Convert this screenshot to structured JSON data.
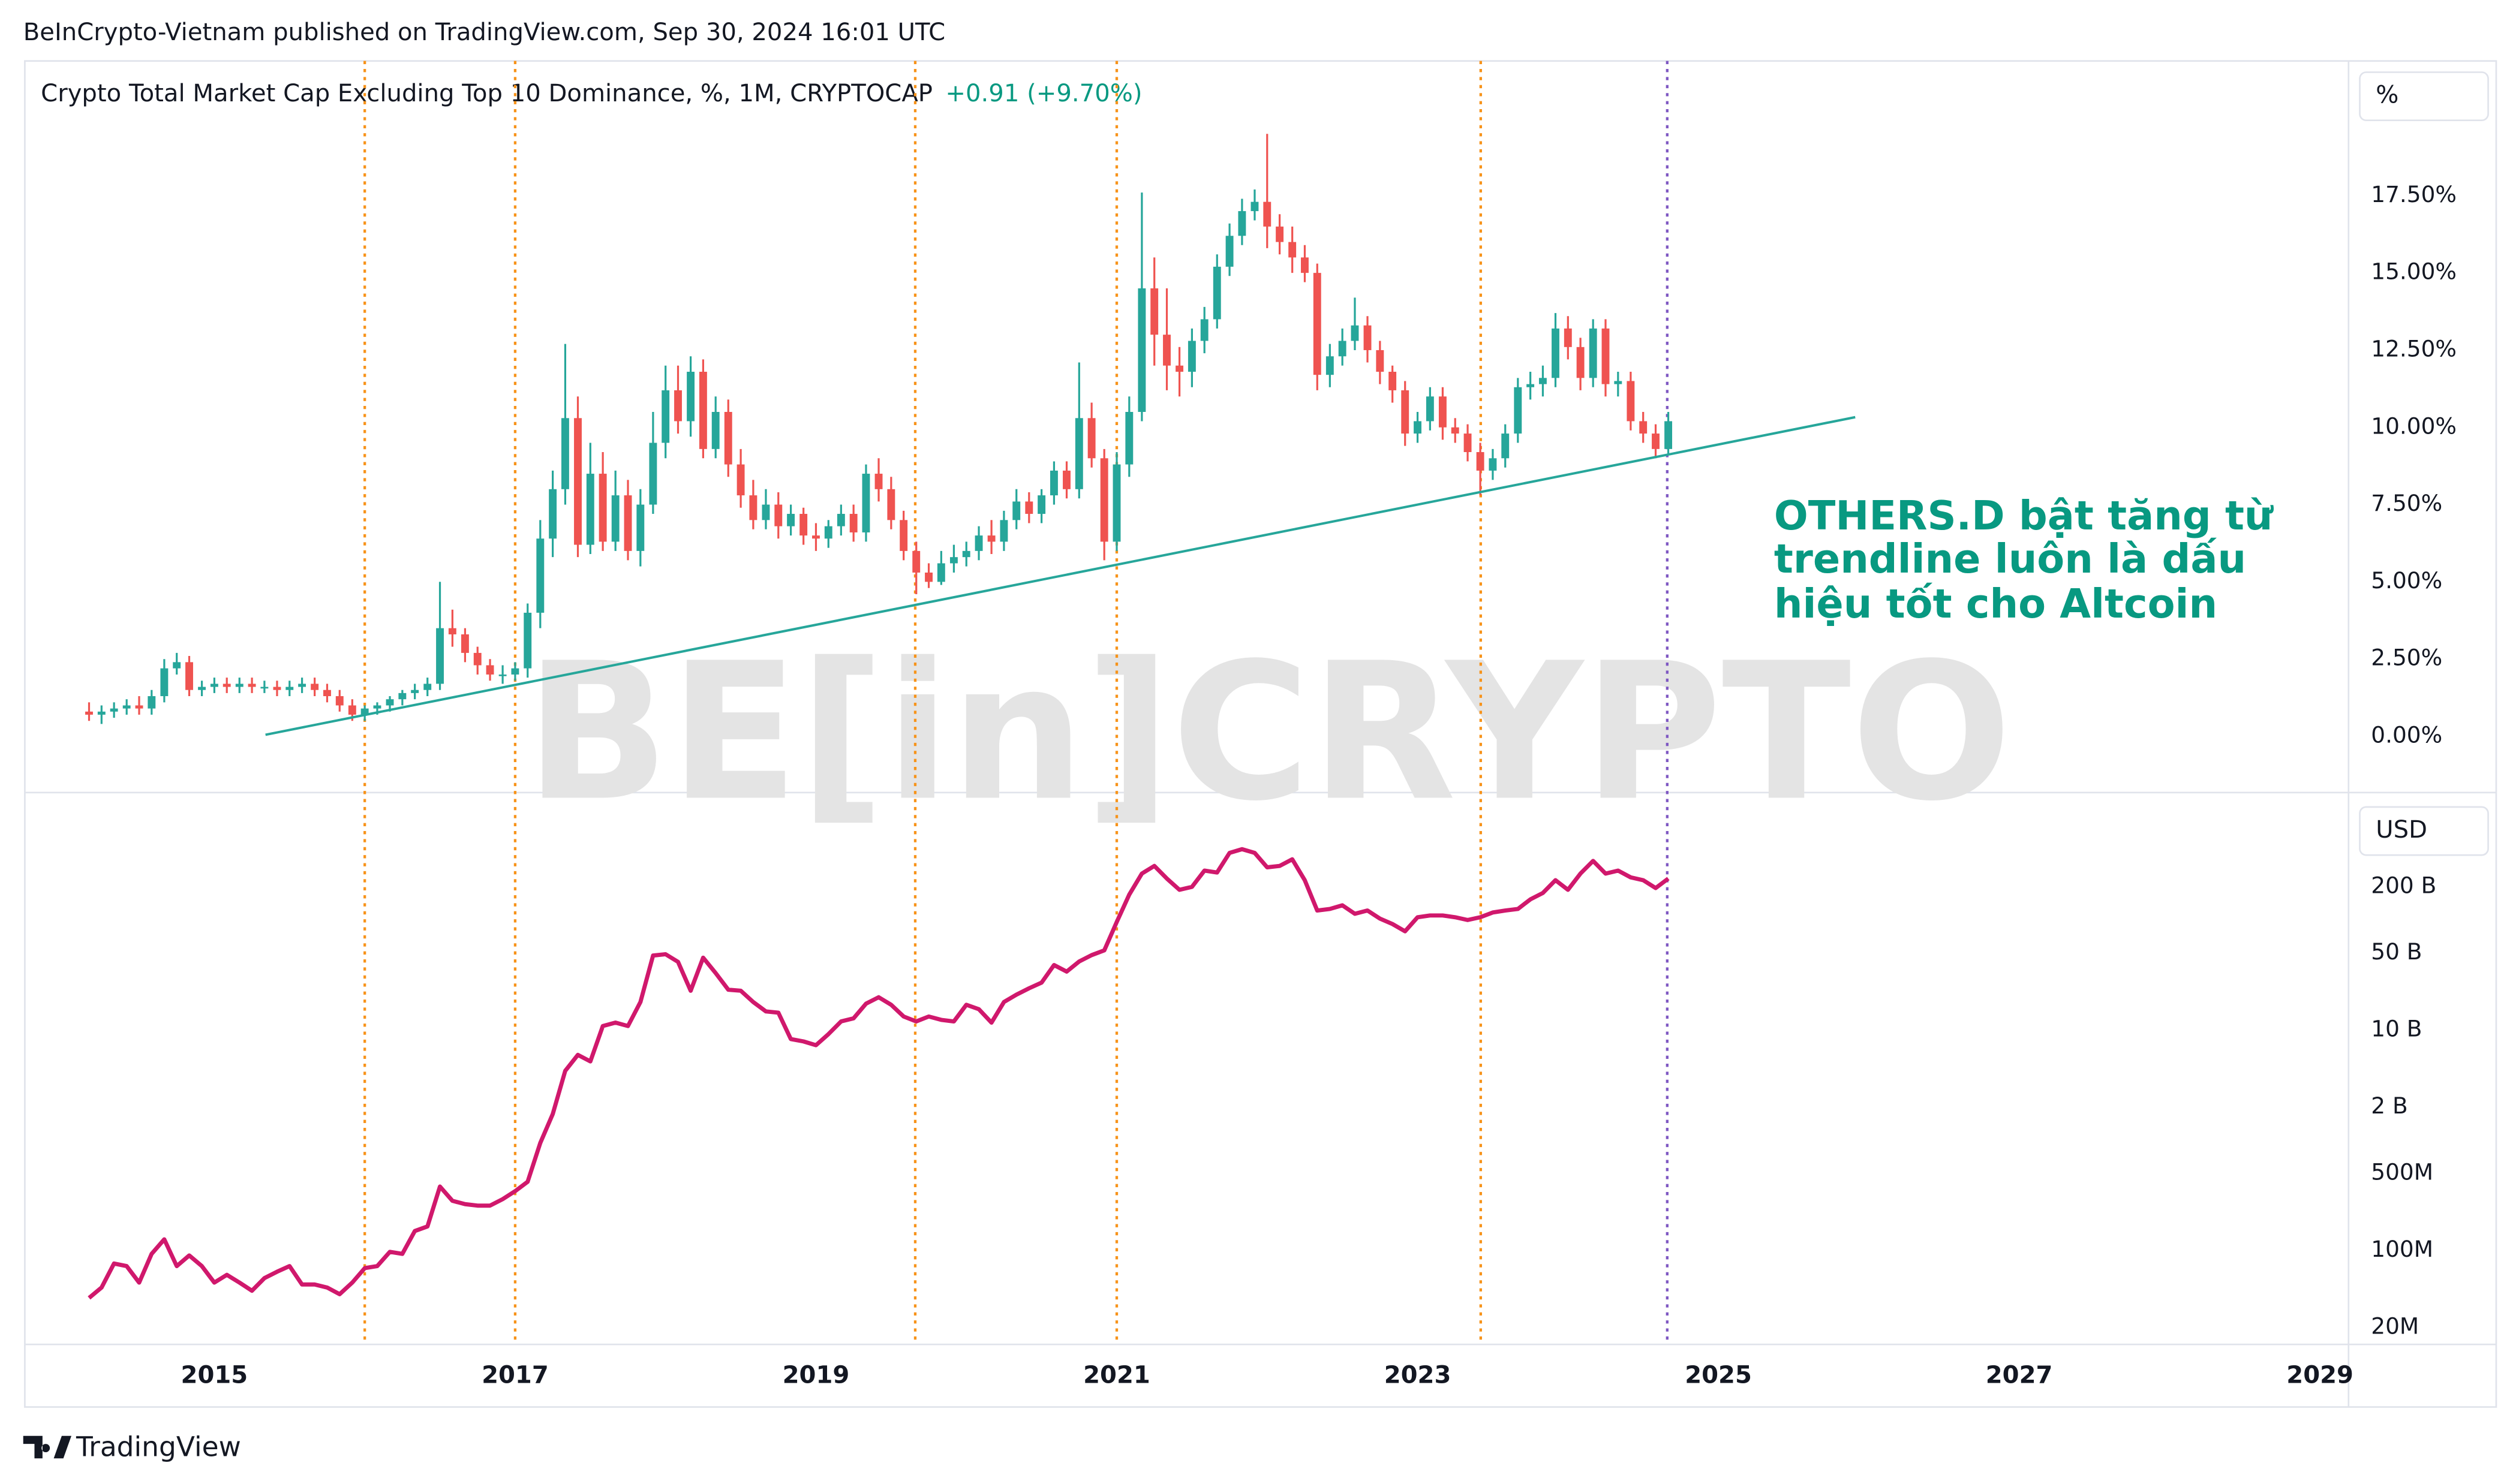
{
  "header": {
    "published": "BeInCrypto-Vietnam published on TradingView.com, Sep 30, 2024 16:01 UTC"
  },
  "footer": {
    "brand": "TradingView"
  },
  "watermark": "BE[in]CRYPTO",
  "chart_data": [
    {
      "type": "candlestick",
      "title": "Crypto Total Market Cap Excluding Top 10 Dominance, %, 1M, CRYPTOCAP",
      "change": "+0.91 (+9.70%)",
      "change_color": "#089981",
      "unit": "%",
      "up_color": "#26a69a",
      "down_color": "#ef5350",
      "grid": false,
      "x": [
        2014.167,
        2014.25,
        2014.333,
        2014.417,
        2014.5,
        2014.583,
        2014.667,
        2014.75,
        2014.833,
        2014.917,
        2015,
        2015.083,
        2015.167,
        2015.25,
        2015.333,
        2015.417,
        2015.5,
        2015.583,
        2015.667,
        2015.75,
        2015.833,
        2015.917,
        2016,
        2016.083,
        2016.167,
        2016.25,
        2016.333,
        2016.417,
        2016.5,
        2016.583,
        2016.667,
        2016.75,
        2016.833,
        2016.917,
        2017,
        2017.083,
        2017.167,
        2017.25,
        2017.333,
        2017.417,
        2017.5,
        2017.583,
        2017.667,
        2017.75,
        2017.833,
        2017.917,
        2018,
        2018.083,
        2018.167,
        2018.25,
        2018.333,
        2018.417,
        2018.5,
        2018.583,
        2018.667,
        2018.75,
        2018.833,
        2018.917,
        2019,
        2019.083,
        2019.167,
        2019.25,
        2019.333,
        2019.417,
        2019.5,
        2019.583,
        2019.667,
        2019.75,
        2019.833,
        2019.917,
        2020,
        2020.083,
        2020.167,
        2020.25,
        2020.333,
        2020.417,
        2020.5,
        2020.583,
        2020.667,
        2020.75,
        2020.833,
        2020.917,
        2021,
        2021.083,
        2021.167,
        2021.25,
        2021.333,
        2021.417,
        2021.5,
        2021.583,
        2021.667,
        2021.75,
        2021.833,
        2021.917,
        2022,
        2022.083,
        2022.167,
        2022.25,
        2022.333,
        2022.417,
        2022.5,
        2022.583,
        2022.667,
        2022.75,
        2022.833,
        2022.917,
        2023,
        2023.083,
        2023.167,
        2023.25,
        2023.333,
        2023.417,
        2023.5,
        2023.583,
        2023.667,
        2023.75,
        2023.833,
        2023.917,
        2024,
        2024.083,
        2024.167,
        2024.25,
        2024.333,
        2024.417,
        2024.5,
        2024.583,
        2024.667
      ],
      "open": [
        0.8,
        0.7,
        0.8,
        0.9,
        1.0,
        0.9,
        1.3,
        2.2,
        2.4,
        1.5,
        1.6,
        1.7,
        1.6,
        1.7,
        1.6,
        1.6,
        1.5,
        1.6,
        1.7,
        1.5,
        1.3,
        1.0,
        0.7,
        0.9,
        1.0,
        1.2,
        1.4,
        1.5,
        1.7,
        3.5,
        3.3,
        2.7,
        2.3,
        2.0,
        2.0,
        2.2,
        4.0,
        6.4,
        8.0,
        10.3,
        6.2,
        8.5,
        6.3,
        7.8,
        6.0,
        7.5,
        9.5,
        11.2,
        10.2,
        11.8,
        9.3,
        10.5,
        8.8,
        7.8,
        7.0,
        7.5,
        6.8,
        7.2,
        6.5,
        6.4,
        6.8,
        7.2,
        6.6,
        8.5,
        8.0,
        7.0,
        6.0,
        5.3,
        5.0,
        5.6,
        5.8,
        6.0,
        6.5,
        6.3,
        7.0,
        7.6,
        7.2,
        7.8,
        8.6,
        8.0,
        10.3,
        9.0,
        6.3,
        8.8,
        10.5,
        14.5,
        13.0,
        12.0,
        11.8,
        12.8,
        13.5,
        15.2,
        16.2,
        17.0,
        17.3,
        16.5,
        16.0,
        15.5,
        15.0,
        11.7,
        12.3,
        12.8,
        13.3,
        12.5,
        11.8,
        11.2,
        9.8,
        10.2,
        11.0,
        10.0,
        9.8,
        9.2,
        8.6,
        9.0,
        9.8,
        11.3,
        11.4,
        11.6,
        13.2,
        12.6,
        11.6,
        13.2,
        11.4,
        11.5,
        10.2,
        9.8,
        9.3
      ],
      "high": [
        1.1,
        1.0,
        1.1,
        1.2,
        1.3,
        1.5,
        2.5,
        2.7,
        2.6,
        1.8,
        1.9,
        1.9,
        1.9,
        1.9,
        1.8,
        1.8,
        1.8,
        1.9,
        1.9,
        1.7,
        1.5,
        1.2,
        1.0,
        1.1,
        1.3,
        1.5,
        1.7,
        1.9,
        5.0,
        4.1,
        3.5,
        2.9,
        2.5,
        2.3,
        2.4,
        4.3,
        7.0,
        8.6,
        12.7,
        11.0,
        9.5,
        9.2,
        8.6,
        8.3,
        8.0,
        10.5,
        12.0,
        12.0,
        12.3,
        12.2,
        11.0,
        10.9,
        9.3,
        8.3,
        8.0,
        7.9,
        7.5,
        7.4,
        6.9,
        7.0,
        7.5,
        7.5,
        8.8,
        9.0,
        8.4,
        7.3,
        6.3,
        5.6,
        6.0,
        6.2,
        6.3,
        6.8,
        7.0,
        7.3,
        8.0,
        7.9,
        8.0,
        8.9,
        8.9,
        12.1,
        10.8,
        9.3,
        9.2,
        11.0,
        17.6,
        15.5,
        14.5,
        12.6,
        13.2,
        13.9,
        15.6,
        16.6,
        17.4,
        17.7,
        19.5,
        16.9,
        16.5,
        15.9,
        15.3,
        12.7,
        13.2,
        14.2,
        13.6,
        12.8,
        12.0,
        11.5,
        10.5,
        11.3,
        11.3,
        10.3,
        10.1,
        9.5,
        9.3,
        10.1,
        11.6,
        11.8,
        12.0,
        13.7,
        13.6,
        12.9,
        13.5,
        13.5,
        11.8,
        11.8,
        10.5,
        10.1,
        10.5
      ],
      "low": [
        0.5,
        0.4,
        0.6,
        0.7,
        0.7,
        0.7,
        1.1,
        2.0,
        1.3,
        1.3,
        1.4,
        1.4,
        1.4,
        1.4,
        1.4,
        1.3,
        1.3,
        1.4,
        1.3,
        1.1,
        0.8,
        0.5,
        0.5,
        0.7,
        0.8,
        1.0,
        1.2,
        1.3,
        1.5,
        2.9,
        2.4,
        2.0,
        1.8,
        1.7,
        1.8,
        1.9,
        3.5,
        5.8,
        7.5,
        5.8,
        5.9,
        6.0,
        6.0,
        5.7,
        5.5,
        7.2,
        9.0,
        9.8,
        9.7,
        9.0,
        9.0,
        8.4,
        7.4,
        6.7,
        6.7,
        6.4,
        6.5,
        6.2,
        6.0,
        6.1,
        6.5,
        6.3,
        6.3,
        7.6,
        6.7,
        5.7,
        4.6,
        4.8,
        4.9,
        5.3,
        5.5,
        5.7,
        5.9,
        6.0,
        6.7,
        6.9,
        6.9,
        7.5,
        7.7,
        7.7,
        8.7,
        5.7,
        6.0,
        8.4,
        10.2,
        12.0,
        11.2,
        11.0,
        11.3,
        12.4,
        13.2,
        14.9,
        15.9,
        16.7,
        15.8,
        15.6,
        15.0,
        14.7,
        11.2,
        11.3,
        12.0,
        12.5,
        12.1,
        11.4,
        10.8,
        9.4,
        9.5,
        9.9,
        9.6,
        9.5,
        8.9,
        7.8,
        8.3,
        8.7,
        9.5,
        10.9,
        11.0,
        11.3,
        12.2,
        11.2,
        11.3,
        11.0,
        11.0,
        9.9,
        9.5,
        9.0,
        9.1
      ],
      "close": [
        0.7,
        0.8,
        0.9,
        1.0,
        0.9,
        1.3,
        2.2,
        2.4,
        1.5,
        1.6,
        1.7,
        1.6,
        1.7,
        1.6,
        1.6,
        1.5,
        1.6,
        1.7,
        1.5,
        1.3,
        1.0,
        0.7,
        0.9,
        1.0,
        1.2,
        1.4,
        1.5,
        1.7,
        3.5,
        3.3,
        2.7,
        2.3,
        2.0,
        2.0,
        2.2,
        4.0,
        6.4,
        8.0,
        10.3,
        6.2,
        8.5,
        6.3,
        7.8,
        6.0,
        7.5,
        9.5,
        11.2,
        10.2,
        11.8,
        9.3,
        10.5,
        8.8,
        7.8,
        7.0,
        7.5,
        6.8,
        7.2,
        6.5,
        6.4,
        6.8,
        7.2,
        6.6,
        8.5,
        8.0,
        7.0,
        6.0,
        5.3,
        5.0,
        5.6,
        5.8,
        6.0,
        6.5,
        6.3,
        7.0,
        7.6,
        7.2,
        7.8,
        8.6,
        8.0,
        10.3,
        9.0,
        6.3,
        8.8,
        10.5,
        14.5,
        13.0,
        12.0,
        11.8,
        12.8,
        13.5,
        15.2,
        16.2,
        17.0,
        17.3,
        16.5,
        16.0,
        15.5,
        15.0,
        11.7,
        12.3,
        12.8,
        13.3,
        12.5,
        11.8,
        11.2,
        9.8,
        10.2,
        11.0,
        10.0,
        9.8,
        9.2,
        8.6,
        9.0,
        9.8,
        11.3,
        11.4,
        11.6,
        13.2,
        12.6,
        11.6,
        13.2,
        11.4,
        11.5,
        10.2,
        9.8,
        9.3,
        10.2
      ],
      "trendline": {
        "x": [
          2015.34,
          2025.91
        ],
        "y": [
          0.05,
          10.33
        ],
        "color": "#26a69a"
      },
      "vlines": [
        {
          "x": 2016.0,
          "color": "#f7931a"
        },
        {
          "x": 2017.0,
          "color": "#f7931a"
        },
        {
          "x": 2019.66,
          "color": "#f7931a"
        },
        {
          "x": 2021.0,
          "color": "#f7931a"
        },
        {
          "x": 2023.42,
          "color": "#f7931a"
        },
        {
          "x": 2024.66,
          "color": "#7e57c2"
        }
      ],
      "annotation": [
        "OTHERS.D bật tăng từ",
        "trendline luôn là dấu",
        "hiệu tốt cho Altcoin"
      ],
      "annotation_color": "#089981",
      "xlim": [
        2013.74,
        2029.19
      ],
      "ylim": [
        -1.82,
        21.86
      ],
      "yticks": [
        {
          "value": 0,
          "label": "0.00%"
        },
        {
          "value": 2.5,
          "label": "2.50%"
        },
        {
          "value": 5,
          "label": "5.00%"
        },
        {
          "value": 7.5,
          "label": "7.50%"
        },
        {
          "value": 10,
          "label": "10.00%"
        },
        {
          "value": 12.5,
          "label": "12.50%"
        },
        {
          "value": 15,
          "label": "15.00%"
        },
        {
          "value": 17.5,
          "label": "17.50%"
        }
      ]
    },
    {
      "type": "line",
      "unit": "USD",
      "log_scale": true,
      "grid": false,
      "series": [
        {
          "color": "#d0186c",
          "values": [
            37000000.0,
            46000000.0,
            76000000.0,
            72000000.0,
            51000000.0,
            93000000.0,
            126000000.0,
            72000000.0,
            90000000.0,
            72000000.0,
            51000000.0,
            60000000.0,
            51000000.0,
            43000000.0,
            56000000.0,
            64000000.0,
            72000000.0,
            49000000.0,
            49000000.0,
            46000000.0,
            40000000.0,
            51000000.0,
            69000000.0,
            72000000.0,
            97000000.0,
            93000000.0,
            150000000.0,
            165000000.0,
            380000000.0,
            282000000.0,
            263000000.0,
            255000000.0,
            255000000.0,
            292000000.0,
            345000000.0,
            420000000.0,
            944000000.0,
            1730000000.0,
            4270000000.0,
            5960000000.0,
            5200000000.0,
            10900000000.0,
            11700000000.0,
            10900000000.0,
            18000000000.0,
            47600000000.0,
            48900000000.0,
            41700000000.0,
            22800000000.0,
            45500000000.0,
            33000000000.0,
            23300000000.0,
            22800000000.0,
            18000000000.0,
            14800000000.0,
            14400000000.0,
            8300000000.0,
            7900000000.0,
            7300000000.0,
            9200000000.0,
            12000000000.0,
            12800000000.0,
            17400000000.0,
            19900000000.0,
            17000000000.0,
            13300000000.0,
            12000000000.0,
            13300000000.0,
            12400000000.0,
            12000000000.0,
            17000000000.0,
            15500000000.0,
            11700000000.0,
            18000000000.0,
            21000000000.0,
            24000000000.0,
            27000000000.0,
            39000000000.0,
            34000000000.0,
            42000000000.0,
            48000000000.0,
            53000000000.0,
            96000000000.0,
            170000000000.0,
            264000000000.0,
            310000000000.0,
            238000000000.0,
            188000000000.0,
            200000000000.0,
            281000000000.0,
            270000000000.0,
            407000000000.0,
            440000000000.0,
            407000000000.0,
            301000000000.0,
            310000000000.0,
            356000000000.0,
            230000000000.0,
            122000000000.0,
            126000000000.0,
            136000000000.0,
            114000000000.0,
            122000000000.0,
            103000000000.0,
            92000000000.0,
            79000000000.0,
            106000000000.0,
            110000000000.0,
            110000000000.0,
            106000000000.0,
            100000000000.0,
            106000000000.0,
            117000000000.0,
            122000000000.0,
            126000000000.0,
            154000000000.0,
            176000000000.0,
            230000000000.0,
            188000000000.0,
            264000000000.0,
            344000000000.0,
            264000000000.0,
            281000000000.0,
            244000000000.0,
            230000000000.0,
            195000000000.0,
            238000000000.0
          ]
        }
      ],
      "x": [
        2014.167,
        2014.25,
        2014.333,
        2014.417,
        2014.5,
        2014.583,
        2014.667,
        2014.75,
        2014.833,
        2014.917,
        2015,
        2015.083,
        2015.167,
        2015.25,
        2015.333,
        2015.417,
        2015.5,
        2015.583,
        2015.667,
        2015.75,
        2015.833,
        2015.917,
        2016,
        2016.083,
        2016.167,
        2016.25,
        2016.333,
        2016.417,
        2016.5,
        2016.583,
        2016.667,
        2016.75,
        2016.833,
        2016.917,
        2017,
        2017.083,
        2017.167,
        2017.25,
        2017.333,
        2017.417,
        2017.5,
        2017.583,
        2017.667,
        2017.75,
        2017.833,
        2017.917,
        2018,
        2018.083,
        2018.167,
        2018.25,
        2018.333,
        2018.417,
        2018.5,
        2018.583,
        2018.667,
        2018.75,
        2018.833,
        2018.917,
        2019,
        2019.083,
        2019.167,
        2019.25,
        2019.333,
        2019.417,
        2019.5,
        2019.583,
        2019.667,
        2019.75,
        2019.833,
        2019.917,
        2020,
        2020.083,
        2020.167,
        2020.25,
        2020.333,
        2020.417,
        2020.5,
        2020.583,
        2020.667,
        2020.75,
        2020.833,
        2020.917,
        2021,
        2021.083,
        2021.167,
        2021.25,
        2021.333,
        2021.417,
        2021.5,
        2021.583,
        2021.667,
        2021.75,
        2021.833,
        2021.917,
        2022,
        2022.083,
        2022.167,
        2022.25,
        2022.333,
        2022.417,
        2022.5,
        2022.583,
        2022.667,
        2022.75,
        2022.833,
        2022.917,
        2023,
        2023.083,
        2023.167,
        2023.25,
        2023.333,
        2023.417,
        2023.5,
        2023.583,
        2023.667,
        2023.75,
        2023.833,
        2023.917,
        2024,
        2024.083,
        2024.167,
        2024.25,
        2024.333,
        2024.417,
        2024.5,
        2024.583,
        2024.667
      ],
      "xlim": [
        2013.74,
        2029.19
      ],
      "xticks": [
        2015,
        2017,
        2019,
        2021,
        2023,
        2025,
        2027,
        2029
      ],
      "ylim": [
        14000000,
        1300000000000
      ],
      "yticks": [
        {
          "value": 20000000,
          "label": "20M"
        },
        {
          "value": 100000000,
          "label": "100M"
        },
        {
          "value": 500000000,
          "label": "500M"
        },
        {
          "value": 2000000000,
          "label": "2 B"
        },
        {
          "value": 10000000000,
          "label": "10 B"
        },
        {
          "value": 50000000000,
          "label": "50 B"
        },
        {
          "value": 200000000000,
          "label": "200 B"
        }
      ]
    }
  ]
}
